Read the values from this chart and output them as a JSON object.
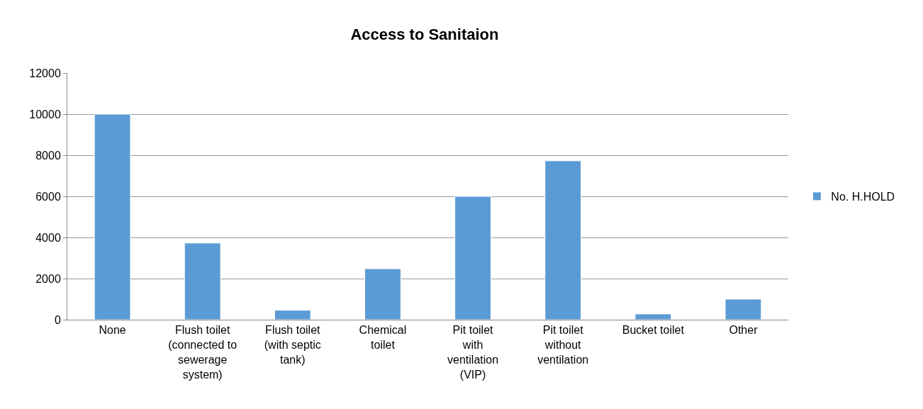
{
  "chart_data": {
    "type": "bar",
    "title": "Access to Sanitaion",
    "categories": [
      "None",
      "Flush toilet (connected to sewerage system)",
      "Flush toilet (with septic tank)",
      "Chemical toilet",
      "Pit toilet with ventilation (VIP)",
      "Pit toilet without ventilation",
      "Bucket toilet",
      "Other"
    ],
    "series": [
      {
        "name": "No. H.HOLD",
        "color": "#5b9bd5",
        "values": [
          10000,
          3730,
          460,
          2480,
          6000,
          7730,
          280,
          1000
        ]
      }
    ],
    "ylim": [
      0,
      12000
    ],
    "yticks": [
      0,
      2000,
      4000,
      6000,
      8000,
      10000,
      12000
    ],
    "grid": "y",
    "legend": "right"
  }
}
